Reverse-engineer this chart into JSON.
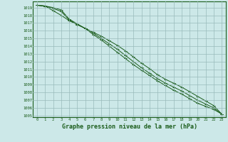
{
  "xlabel": "Graphe pression niveau de la mer (hPa)",
  "xlim": [
    -0.5,
    23.5
  ],
  "ylim": [
    1004.8,
    1019.8
  ],
  "yticks": [
    1005,
    1006,
    1007,
    1008,
    1009,
    1010,
    1011,
    1012,
    1013,
    1014,
    1015,
    1016,
    1017,
    1018,
    1019
  ],
  "xticks": [
    0,
    1,
    2,
    3,
    4,
    5,
    6,
    7,
    8,
    9,
    10,
    11,
    12,
    13,
    14,
    15,
    16,
    17,
    18,
    19,
    20,
    21,
    22,
    23
  ],
  "background_color": "#cce8e8",
  "line_color": "#1a5c1a",
  "grid_color": "#99bbbb",
  "series": [
    [
      1019.3,
      1019.2,
      1018.6,
      1018.0,
      1017.3,
      1016.8,
      1016.3,
      1015.8,
      1015.3,
      1014.7,
      1014.1,
      1013.4,
      1012.6,
      1011.8,
      1011.1,
      1010.3,
      1009.7,
      1009.2,
      1008.7,
      1008.1,
      1007.5,
      1006.9,
      1006.3,
      1005.2
    ],
    [
      1019.3,
      1019.2,
      1018.9,
      1018.5,
      1017.4,
      1016.8,
      1016.3,
      1015.7,
      1015.0,
      1014.3,
      1013.6,
      1012.8,
      1012.0,
      1011.2,
      1010.5,
      1009.8,
      1009.2,
      1008.7,
      1008.2,
      1007.6,
      1007.0,
      1006.5,
      1006.0,
      1005.2
    ],
    [
      1019.3,
      1019.2,
      1019.0,
      1018.7,
      1017.5,
      1016.9,
      1016.3,
      1015.5,
      1014.8,
      1014.0,
      1013.2,
      1012.4,
      1011.6,
      1010.9,
      1010.2,
      1009.5,
      1008.9,
      1008.3,
      1007.8,
      1007.2,
      1006.6,
      1006.2,
      1005.8,
      1005.2
    ]
  ]
}
